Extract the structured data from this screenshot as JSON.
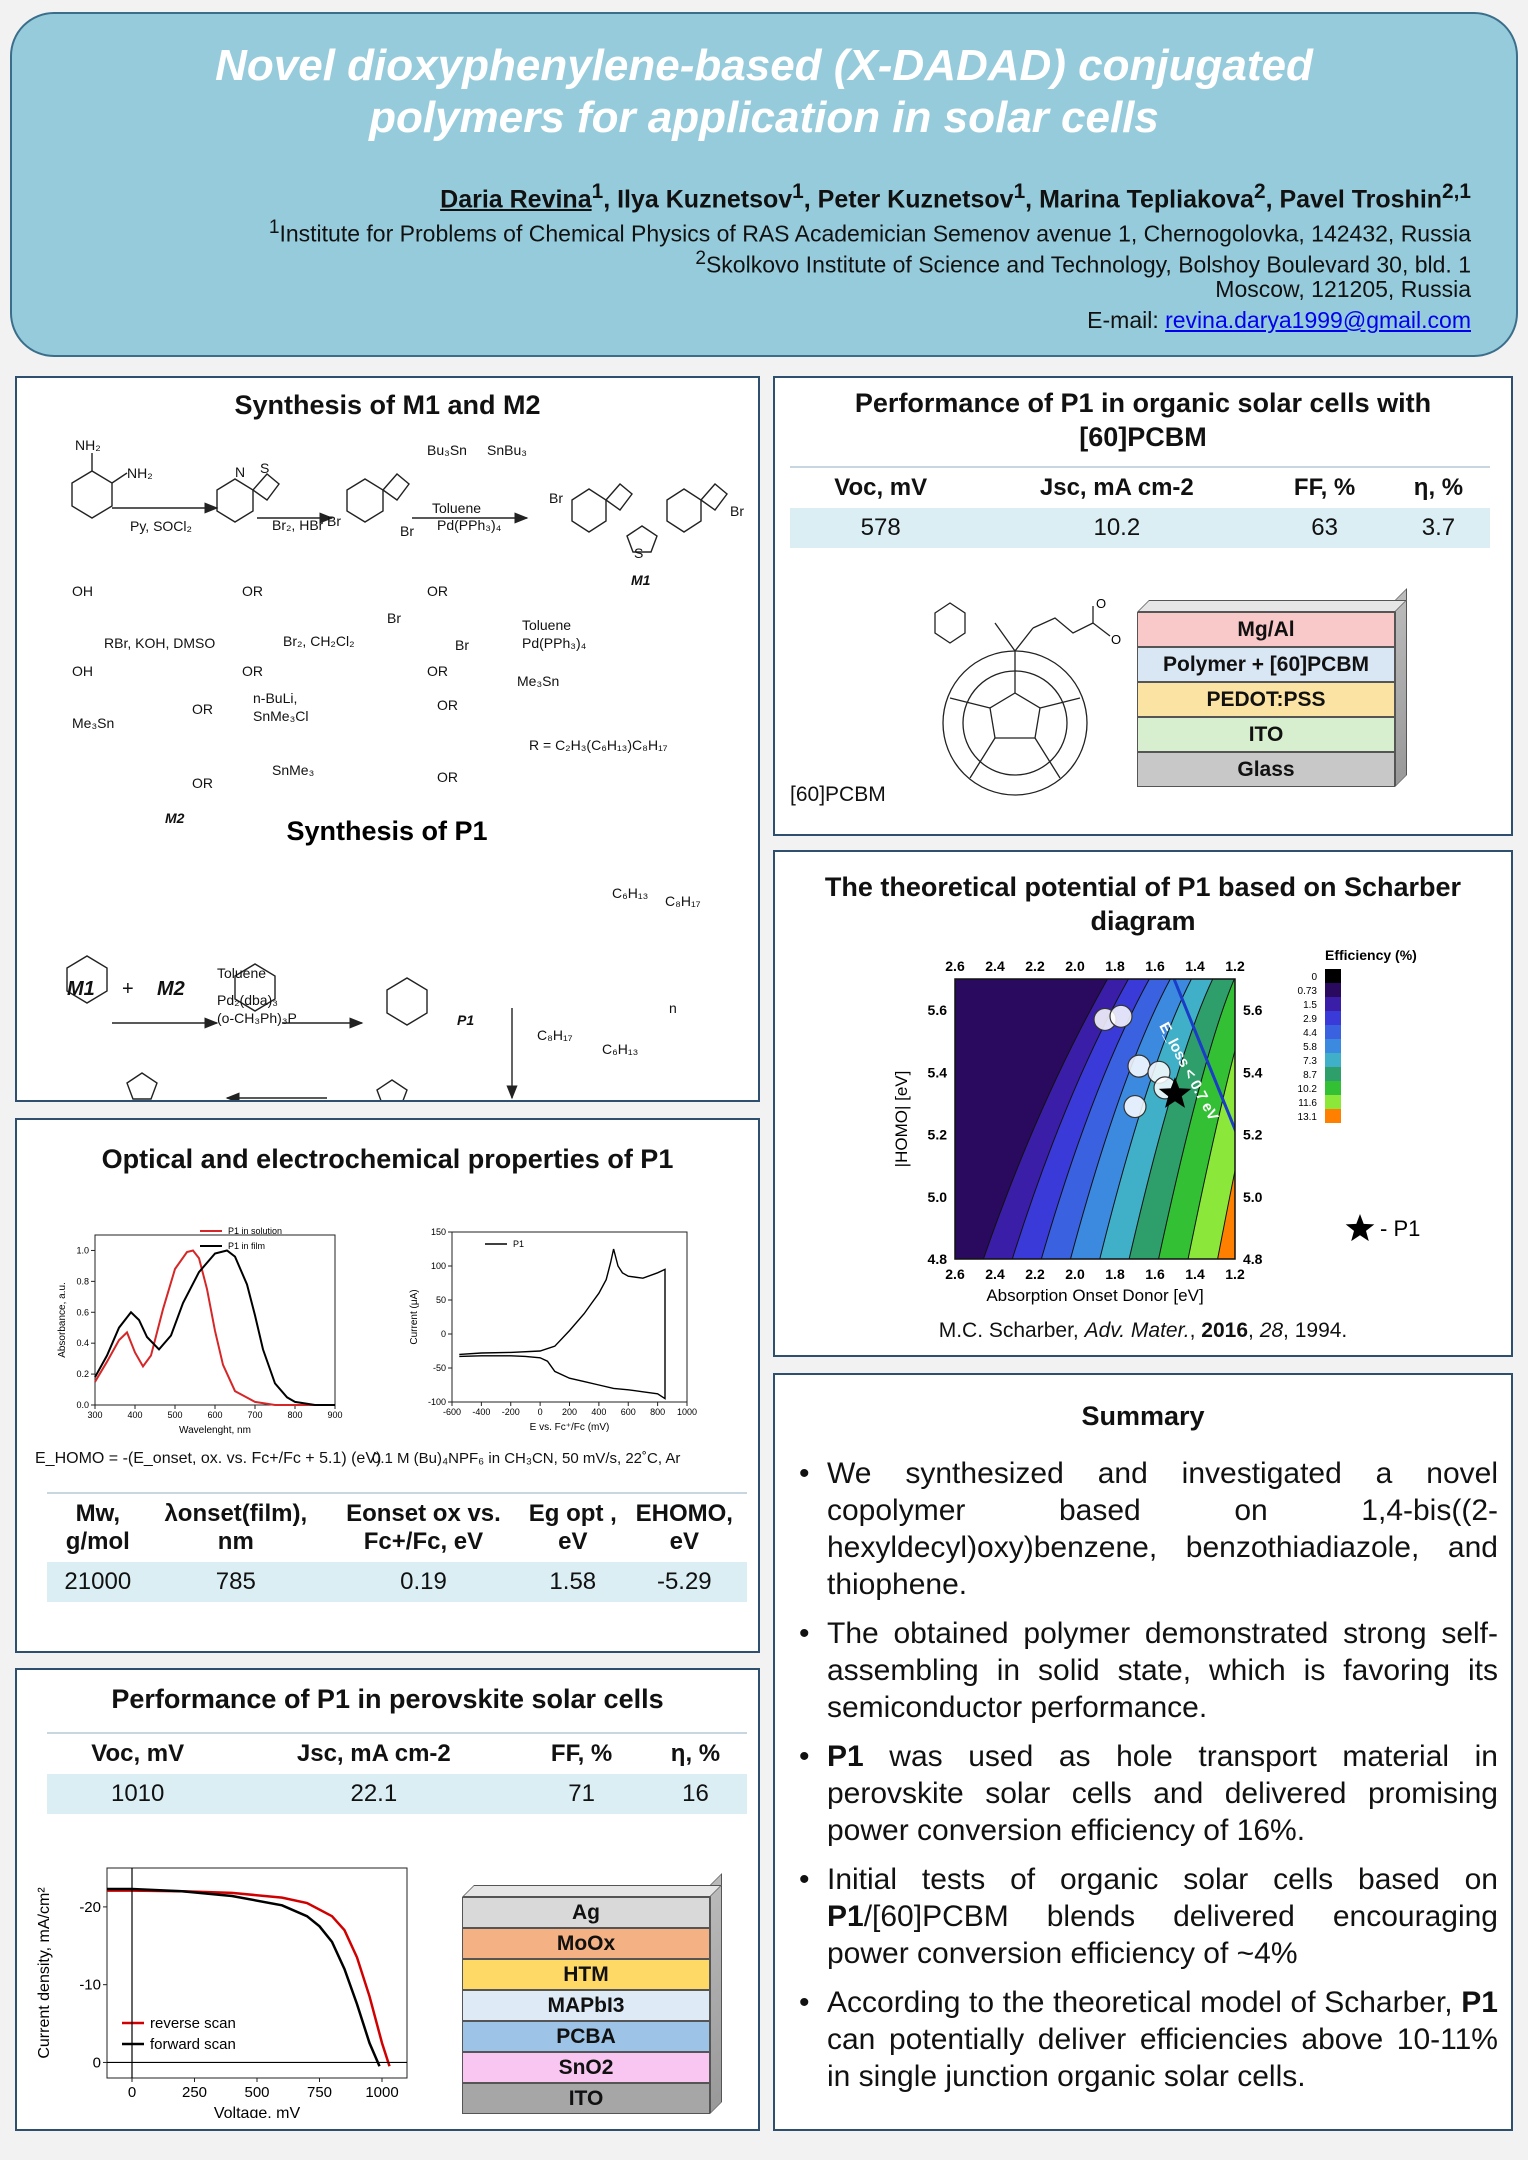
{
  "header": {
    "title_line1": "Novel dioxyphenylene-based (X-DADAD) conjugated",
    "title_line2": "polymers for application in solar cells",
    "authors": [
      {
        "name": "Daria Revina",
        "sup": "1"
      },
      {
        "name": "Ilya Kuznetsov",
        "sup": "1"
      },
      {
        "name": "Peter Kuznetsov",
        "sup": "1"
      },
      {
        "name": "Marina Tepliakova",
        "sup": "2"
      },
      {
        "name": "Pavel Troshin",
        "sup": "2,1"
      }
    ],
    "aff1_sup": "1",
    "aff1": "Institute for Problems of Chemical Physics of RAS Academician Semenov avenue 1, Chernogolovka, 142432, Russia",
    "aff2_sup": "2",
    "aff2": "Skolkovo Institute of Science and Technology, Bolshoy Boulevard 30, bld. 1",
    "aff2_line2": "Moscow, 121205, Russia",
    "email_label": "E-mail:",
    "email": "revina.darya1999@gmail.com"
  },
  "synthesis": {
    "title_m": "Synthesis of M1 and M2",
    "title_p": "Synthesis of P1",
    "labels": {
      "py_socl2": "Py, SOCl₂",
      "br2_hbr": "Br₂, HBr",
      "toluene_pd": "Toluene",
      "pd_cat": "Pd(PPh₃)₄",
      "rbr": "RBr, KOH, DMSO",
      "br2_ch2cl2": "Br₂, CH₂Cl₂",
      "nbuli": "n-BuLi,",
      "snme3cl": "SnMe₃Cl",
      "r_def": "R = C₂H₃(C₆H₁₃)C₈H₁₇",
      "m1": "M1",
      "m2": "M2",
      "p1": "P1",
      "pd2dba3": "Pd₂(dba)₃",
      "ligand": "(o-CH₃Ph)₃P",
      "n": "n",
      "c6h13": "C₆H₁₃",
      "c8h17": "C₈H₁₇",
      "snbu3": "SnBu₃",
      "bu3sn": "Bu₃Sn",
      "me3sn": "Me₃Sn",
      "snme3": "SnMe₃",
      "nh2": "NH₂",
      "oh": "OH",
      "or": "OR",
      "br": "Br",
      "s": "S",
      "n_atom": "N",
      "plus": "+"
    }
  },
  "optical": {
    "title": "Optical and electrochemical properties of P1",
    "ehomo_formula": "E_HOMO = -(E_onset, ox. vs. Fc+/Fc + 5.1)  (eV)",
    "cv_conditions": "0.1 M (Bu)₄NPF₆ in CH₃CN, 50 mV/s, 22˚C, Ar",
    "table": {
      "headers": [
        "Mw, g/mol",
        "λonset(film), nm",
        "Eonset ox vs. Fc+/Fc, eV",
        "Eg opt , eV",
        "EHOMO, eV"
      ],
      "row": [
        "21000",
        "785",
        "0.19",
        "1.58",
        "-5.29"
      ]
    }
  },
  "chart_data": [
    {
      "type": "line",
      "title": "",
      "xlabel": "Wavelenght, nm",
      "ylabel": "Absorbance, a.u.",
      "xlim": [
        300,
        900
      ],
      "ylim": [
        0.0,
        1.1
      ],
      "xticks": [
        300,
        400,
        500,
        600,
        700,
        800,
        900
      ],
      "yticks": [
        0.0,
        0.2,
        0.4,
        0.6,
        0.8,
        1.0
      ],
      "legend": "top-center",
      "series": [
        {
          "name": "P1 in solution",
          "color": "#d62728",
          "x": [
            300,
            330,
            360,
            380,
            400,
            420,
            440,
            470,
            500,
            530,
            545,
            560,
            580,
            600,
            620,
            650,
            700,
            750,
            800,
            900
          ],
          "y": [
            0.15,
            0.28,
            0.42,
            0.47,
            0.34,
            0.25,
            0.32,
            0.62,
            0.88,
            0.99,
            1.0,
            0.95,
            0.75,
            0.48,
            0.26,
            0.09,
            0.02,
            0.0,
            0.0,
            0.0
          ]
        },
        {
          "name": "P1 in film",
          "color": "#000000",
          "x": [
            300,
            330,
            360,
            390,
            410,
            430,
            460,
            490,
            520,
            560,
            600,
            630,
            650,
            680,
            700,
            720,
            750,
            780,
            800,
            850,
            900
          ],
          "y": [
            0.18,
            0.32,
            0.5,
            0.6,
            0.55,
            0.44,
            0.36,
            0.45,
            0.66,
            0.86,
            0.98,
            1.0,
            0.96,
            0.78,
            0.58,
            0.36,
            0.14,
            0.05,
            0.02,
            0.0,
            0.0
          ]
        }
      ]
    },
    {
      "type": "line",
      "title": "",
      "xlabel": "E vs. Fc⁺/Fc (mV)",
      "ylabel": "Current (μA)",
      "xlim": [
        -600,
        1000
      ],
      "ylim": [
        -100,
        150
      ],
      "xticks": [
        -600,
        -400,
        -200,
        0,
        200,
        400,
        600,
        800,
        1000
      ],
      "yticks": [
        -100,
        -50,
        0,
        50,
        100,
        150
      ],
      "legend": "top-left",
      "series": [
        {
          "name": "P1",
          "color": "#000000",
          "x": [
            -550,
            -400,
            -200,
            0,
            100,
            200,
            300,
            350,
            400,
            450,
            480,
            500,
            530,
            560,
            600,
            700,
            800,
            850,
            850,
            800,
            700,
            600,
            500,
            400,
            300,
            200,
            100,
            50,
            0,
            -100,
            -200,
            -300,
            -400,
            -550
          ],
          "y": [
            -30,
            -28,
            -27,
            -25,
            -18,
            5,
            30,
            45,
            60,
            80,
            105,
            125,
            100,
            90,
            85,
            82,
            90,
            95,
            -95,
            -88,
            -85,
            -82,
            -80,
            -75,
            -70,
            -65,
            -55,
            -40,
            -35,
            -33,
            -32,
            -32,
            -32,
            -33
          ]
        }
      ]
    },
    {
      "type": "heatmap",
      "title": "",
      "xlabel": "Absorption Onset Donor [eV]",
      "ylabel": "|HOMO| [eV]",
      "xlim": [
        2.6,
        1.2
      ],
      "ylim": [
        4.8,
        5.7
      ],
      "xticks": [
        2.6,
        2.4,
        2.2,
        2.0,
        1.8,
        1.6,
        1.4,
        1.2
      ],
      "yticks": [
        4.8,
        5.0,
        5.2,
        5.4,
        5.6
      ],
      "colorbar_title": "Efficiency (%)",
      "levels": [
        "0",
        "0.73",
        "1.5",
        "2.9",
        "4.4",
        "5.8",
        "7.3",
        "8.7",
        "10.2",
        "11.6",
        "13.1"
      ],
      "level_colors": [
        "#000000",
        "#2a0a5e",
        "#3b1ea8",
        "#3a3ad8",
        "#3a62e0",
        "#3c8ae0",
        "#40b0c8",
        "#2e9e6a",
        "#34c034",
        "#8be83a",
        "#ff8000"
      ],
      "annotation": "E_loss < 0.7 eV",
      "marker_label": "- P1",
      "p1_point": {
        "x": 1.5,
        "y": 5.33
      }
    },
    {
      "type": "line",
      "title": "",
      "xlabel": "Voltage, mV",
      "ylabel": "Current density, mA/cm²",
      "xlim": [
        -100,
        1100
      ],
      "ylim": [
        2,
        -25
      ],
      "xticks": [
        0,
        250,
        500,
        750,
        1000
      ],
      "yticks": [
        -20,
        -10,
        0
      ],
      "legend": "bottom-left",
      "series": [
        {
          "name": "reverse scan",
          "color": "#d00000",
          "x": [
            -100,
            0,
            200,
            400,
            600,
            700,
            800,
            850,
            900,
            950,
            1000,
            1030
          ],
          "y": [
            -22.1,
            -22.1,
            -22.0,
            -21.8,
            -21.2,
            -20.5,
            -18.8,
            -17.0,
            -13.5,
            -8.5,
            -2.5,
            0.5
          ]
        },
        {
          "name": "forward scan",
          "color": "#000000",
          "x": [
            -100,
            0,
            200,
            400,
            600,
            700,
            750,
            800,
            850,
            900,
            950,
            990
          ],
          "y": [
            -22.3,
            -22.3,
            -22.0,
            -21.4,
            -20.2,
            -18.8,
            -17.5,
            -15.5,
            -12.0,
            -7.5,
            -2.5,
            0.5
          ]
        }
      ]
    }
  ],
  "perf_osc": {
    "title_line1": "Performance of P1 in organic solar cells with",
    "title_line2": "[60]PCBM",
    "headers": [
      "Voc, mV",
      "Jsc, mA cm-2",
      "FF, %",
      "η, %"
    ],
    "row": [
      "578",
      "10.2",
      "63",
      "3.7"
    ],
    "pcbm_label": "[60]PCBM",
    "stack": [
      {
        "label": "Mg/Al",
        "color": "#f9c8c8"
      },
      {
        "label": "Polymer + [60]PCBM",
        "color": "#d9e6f4"
      },
      {
        "label": "PEDOT:PSS",
        "color": "#fbe3a4"
      },
      {
        "label": "ITO",
        "color": "#d8efcf"
      },
      {
        "label": "Glass",
        "color": "#c8c8c8"
      }
    ]
  },
  "scharber": {
    "title_line1": "The theoretical potential  of P1 based on Scharber",
    "title_line2": "diagram",
    "citation_author": "M.C. Scharber, ",
    "citation_journal": "Adv. Mater.",
    "citation_year": "2016",
    "citation_vol": "28",
    "citation_page": ", 1994."
  },
  "perf_psc": {
    "title": "Performance of P1 in perovskite solar cells",
    "headers": [
      "Voc, mV",
      "Jsc, mA cm-2",
      "FF, %",
      "η, %"
    ],
    "row": [
      "1010",
      "22.1",
      "71",
      "16"
    ],
    "stack": [
      {
        "label": "Ag",
        "color": "#d9d9d9"
      },
      {
        "label": "MoOx",
        "color": "#f4b183"
      },
      {
        "label": "HTM",
        "color": "#ffd966"
      },
      {
        "label": "MAPbI3",
        "color": "#deebf7"
      },
      {
        "label": "PCBA",
        "color": "#9dc3e6"
      },
      {
        "label": "SnO2",
        "color": "#f9c6f2"
      },
      {
        "label": "ITO",
        "color": "#a6a6a6"
      }
    ]
  },
  "summary": {
    "title": "Summary",
    "items": [
      {
        "bold": "",
        "text": "We synthesized and investigated a novel copolymer based on 1,4-bis((2-hexyldecyl)oxy)benzene, benzothiadiazole, and thiophene."
      },
      {
        "bold": "",
        "text": "The obtained polymer demonstrated strong self-assembling in solid state, which is favoring its semiconductor performance."
      },
      {
        "bold": "P1",
        "text": " was used as hole transport material in perovskite solar cells and delivered promising power conversion efficiency of 16%."
      },
      {
        "bold": "",
        "text": "Initial tests of organic solar cells based on ",
        "bold2": "P1",
        "text2": "/[60]PCBM blends delivered encouraging power conversion efficiency of ~4%"
      },
      {
        "bold": "",
        "text": "According to the theoretical model of Scharber, ",
        "bold2": "P1",
        "text2": " can potentially deliver efficiencies above 10-11% in single junction organic solar cells."
      }
    ]
  }
}
